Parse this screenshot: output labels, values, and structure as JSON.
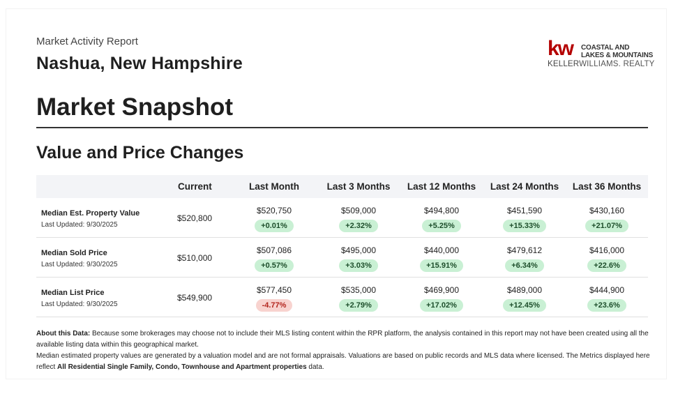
{
  "header": {
    "report_type": "Market Activity Report",
    "city": "Nashua, New Hampshire"
  },
  "logo": {
    "mark": "kw",
    "line1": "COASTAL AND",
    "line2": "LAKES & MOUNTAINS",
    "sub_bold": "KELLER",
    "sub_rest": "WILLIAMS. REALTY",
    "color": "#b40101"
  },
  "snapshot_title": "Market Snapshot",
  "section_title": "Value and Price Changes",
  "table": {
    "columns": [
      "Current",
      "Last Month",
      "Last 3 Months",
      "Last 12 Months",
      "Last 24 Months",
      "Last 36 Months"
    ],
    "rows": [
      {
        "label": "Median Est. Property Value",
        "updated": "Last Updated: 9/30/2025",
        "current": "$520,800",
        "cells": [
          {
            "value": "$520,750",
            "change": "+0.01%"
          },
          {
            "value": "$509,000",
            "change": "+2.32%"
          },
          {
            "value": "$494,800",
            "change": "+5.25%"
          },
          {
            "value": "$451,590",
            "change": "+15.33%"
          },
          {
            "value": "$430,160",
            "change": "+21.07%"
          }
        ]
      },
      {
        "label": "Median Sold Price",
        "updated": "Last Updated: 9/30/2025",
        "current": "$510,000",
        "cells": [
          {
            "value": "$507,086",
            "change": "+0.57%"
          },
          {
            "value": "$495,000",
            "change": "+3.03%"
          },
          {
            "value": "$440,000",
            "change": "+15.91%"
          },
          {
            "value": "$479,612",
            "change": "+6.34%"
          },
          {
            "value": "$416,000",
            "change": "+22.6%"
          }
        ]
      },
      {
        "label": "Median List Price",
        "updated": "Last Updated: 9/30/2025",
        "current": "$549,900",
        "cells": [
          {
            "value": "$577,450",
            "change": "-4.77%"
          },
          {
            "value": "$535,000",
            "change": "+2.79%"
          },
          {
            "value": "$469,900",
            "change": "+17.02%"
          },
          {
            "value": "$489,000",
            "change": "+12.45%"
          },
          {
            "value": "$444,900",
            "change": "+23.6%"
          }
        ]
      }
    ]
  },
  "about": {
    "label": "About this Data:",
    "text1": " Because some brokerages may choose not to include their MLS listing content within the RPR platform, the analysis contained in this report may not have been created using all the available listing data within this geographical market.",
    "text2": "Median estimated property values are generated by a valuation model and are not formal appraisals. Valuations are based on public records and MLS data where licensed. The Metrics displayed here reflect ",
    "bold2": "All Residential Single Family, Condo, Townhouse and Apartment properties",
    "text3": " data."
  },
  "colors": {
    "positive_pill": "#c9f0d4",
    "negative_pill": "#f8d3cf"
  }
}
